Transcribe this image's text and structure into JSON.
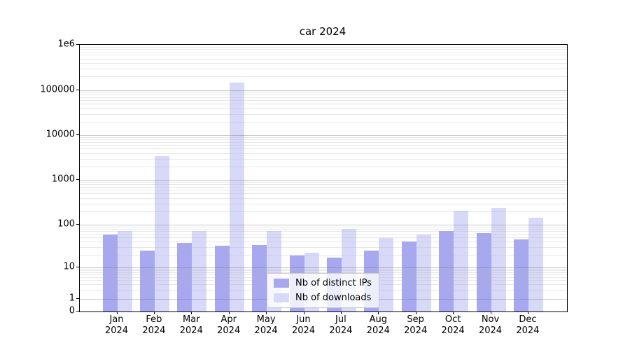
{
  "chart_data": {
    "type": "bar",
    "title": "car 2024",
    "y_scale": "symlog",
    "ylim": [
      0,
      1000000
    ],
    "grid": "horizontal major and minor gridlines, drawn above bars",
    "legend_position": "lower center",
    "year": "2024",
    "months": [
      "Jan",
      "Feb",
      "Mar",
      "Apr",
      "May",
      "Jun",
      "Jul",
      "Aug",
      "Sep",
      "Oct",
      "Nov",
      "Dec"
    ],
    "yticks": [
      {
        "label": "0",
        "value": 0
      },
      {
        "label": "1",
        "value": 1
      },
      {
        "label": "10",
        "value": 10
      },
      {
        "label": "100",
        "value": 100
      },
      {
        "label": "1000",
        "value": 1000
      },
      {
        "label": "10000",
        "value": 10000
      },
      {
        "label": "100000",
        "value": 100000
      },
      {
        "label": "1e6",
        "value": 1000000
      }
    ],
    "series": [
      {
        "name": "Nb of distinct IPs",
        "color": "#a7a8ef",
        "values": [
          60,
          25,
          37,
          32,
          33,
          19,
          17,
          25,
          41,
          72,
          63,
          46
        ]
      },
      {
        "name": "Nb of downloads",
        "color": "#d8d9f9",
        "values": [
          72,
          3400,
          70,
          148000,
          72,
          22,
          80,
          48,
          58,
          205,
          240,
          145
        ]
      }
    ]
  },
  "colors": {
    "background": "#ffffff",
    "spine": "#000000",
    "major_grid": "#c9c9c9",
    "minor_grid": "#ececec"
  }
}
